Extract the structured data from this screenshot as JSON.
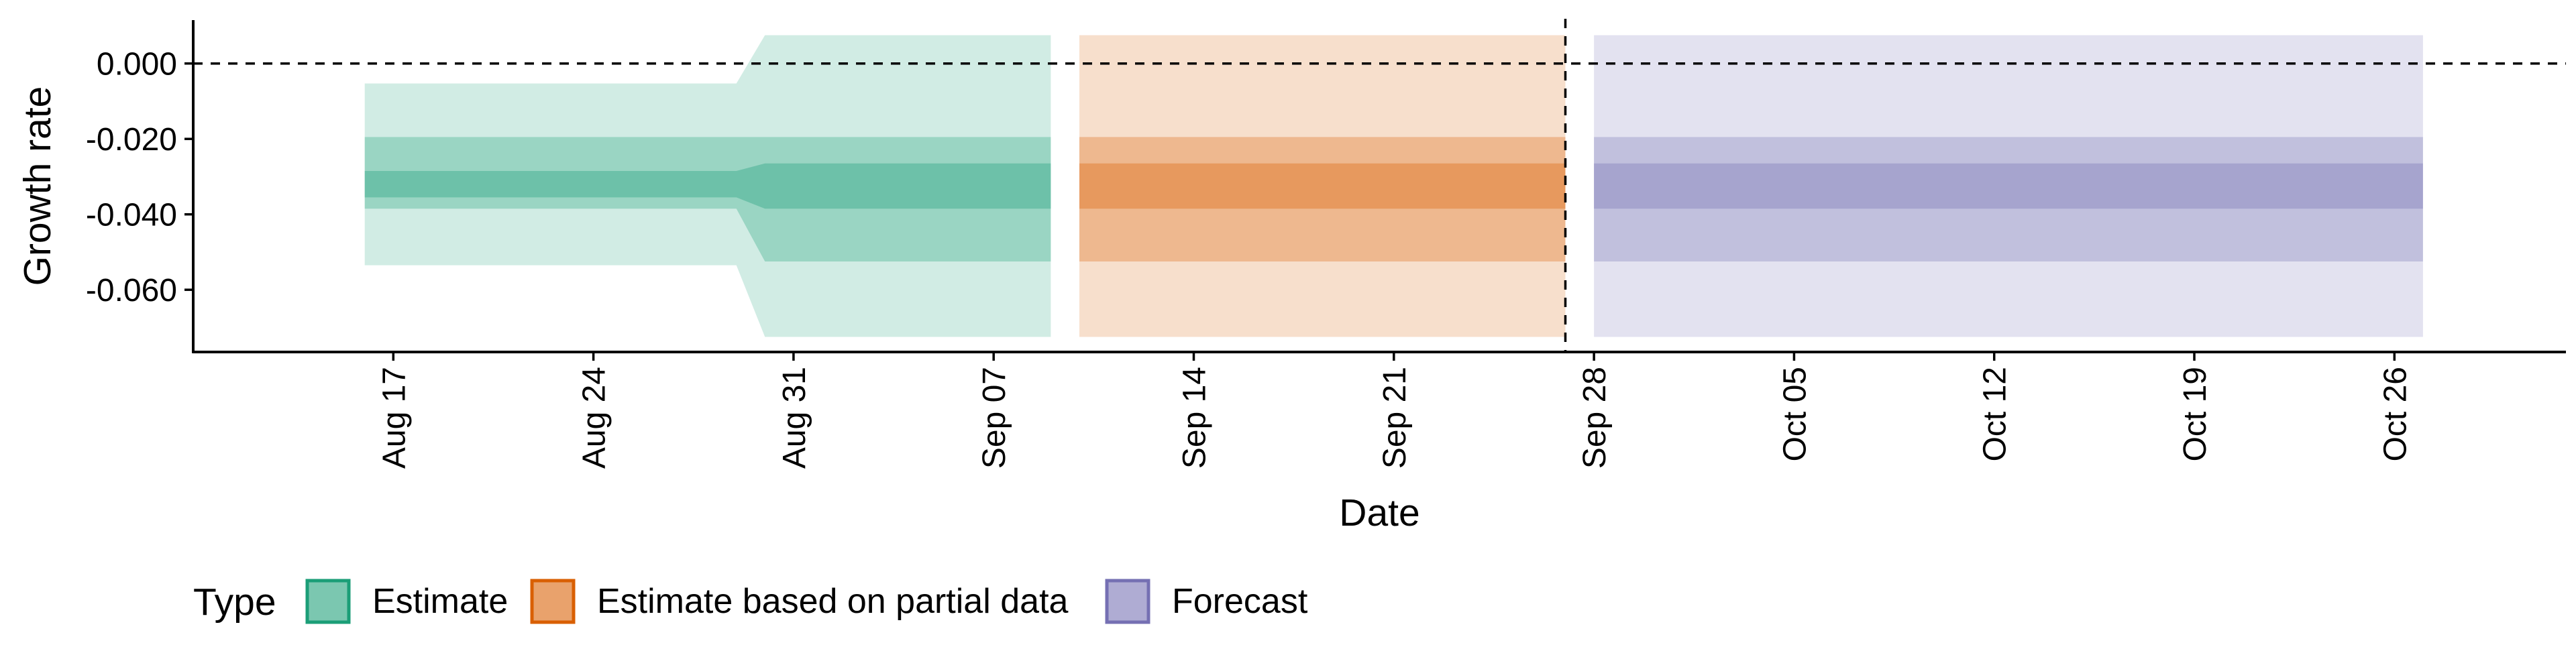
{
  "chart_data": {
    "type": "area",
    "xlabel": "Date",
    "ylabel": "Growth rate",
    "x_ticks": [
      "Aug 17",
      "Aug 24",
      "Aug 31",
      "Sep 07",
      "Sep 14",
      "Sep 21",
      "Sep 28",
      "Oct 05",
      "Oct 12",
      "Oct 19",
      "Oct 26"
    ],
    "x_tick_dates": [
      "2020-08-17",
      "2020-08-24",
      "2020-08-31",
      "2020-09-07",
      "2020-09-14",
      "2020-09-21",
      "2020-09-28",
      "2020-10-05",
      "2020-10-12",
      "2020-10-19",
      "2020-10-26"
    ],
    "x_range": [
      "2020-08-10",
      "2020-11-01"
    ],
    "y_ticks": [
      0.0,
      -0.02,
      -0.04,
      -0.06
    ],
    "y_tick_labels": [
      "0.000",
      "-0.020",
      "-0.040",
      "-0.060"
    ],
    "y_range": [
      -0.0765,
      0.0115
    ],
    "reference_lines": [
      {
        "axis": "y",
        "value": 0.0,
        "style": "dashed"
      },
      {
        "axis": "x",
        "value": "2020-09-27",
        "style": "dashed"
      }
    ],
    "legend": {
      "title": "Type",
      "position": "bottom",
      "items": [
        {
          "label": "Estimate",
          "color": "#1b9e77"
        },
        {
          "label": "Estimate based on partial data",
          "color": "#d95f02"
        },
        {
          "label": "Forecast",
          "color": "#7570b3"
        }
      ]
    },
    "series": [
      {
        "name": "Estimate",
        "color": "#1b9e77",
        "x": [
          "2020-08-16",
          "2020-08-29",
          "2020-08-30",
          "2020-09-09"
        ],
        "outer": [
          [
            -0.0535,
            -0.0053
          ],
          [
            -0.0535,
            -0.0053
          ],
          [
            -0.0725,
            0.0075
          ],
          [
            -0.0725,
            0.0075
          ]
        ],
        "middle": [
          [
            -0.0385,
            -0.0195
          ],
          [
            -0.0385,
            -0.0195
          ],
          [
            -0.0525,
            -0.0195
          ],
          [
            -0.0525,
            -0.0195
          ]
        ],
        "inner": [
          [
            -0.0355,
            -0.0285
          ],
          [
            -0.0355,
            -0.0285
          ],
          [
            -0.0385,
            -0.0265
          ],
          [
            -0.0385,
            -0.0265
          ]
        ]
      },
      {
        "name": "Estimate based on partial data",
        "color": "#d95f02",
        "x": [
          "2020-09-10",
          "2020-09-27"
        ],
        "outer": [
          [
            -0.0725,
            0.0075
          ],
          [
            -0.0725,
            0.0075
          ]
        ],
        "middle": [
          [
            -0.0525,
            -0.0195
          ],
          [
            -0.0525,
            -0.0195
          ]
        ],
        "inner": [
          [
            -0.0385,
            -0.0265
          ],
          [
            -0.0385,
            -0.0265
          ]
        ]
      },
      {
        "name": "Forecast",
        "color": "#7570b3",
        "x": [
          "2020-09-28",
          "2020-10-27"
        ],
        "outer": [
          [
            -0.0725,
            0.0075
          ],
          [
            -0.0725,
            0.0075
          ]
        ],
        "middle": [
          [
            -0.0525,
            -0.0195
          ],
          [
            -0.0525,
            -0.0195
          ]
        ],
        "inner": [
          [
            -0.0385,
            -0.0265
          ],
          [
            -0.0385,
            -0.0265
          ]
        ]
      }
    ]
  }
}
